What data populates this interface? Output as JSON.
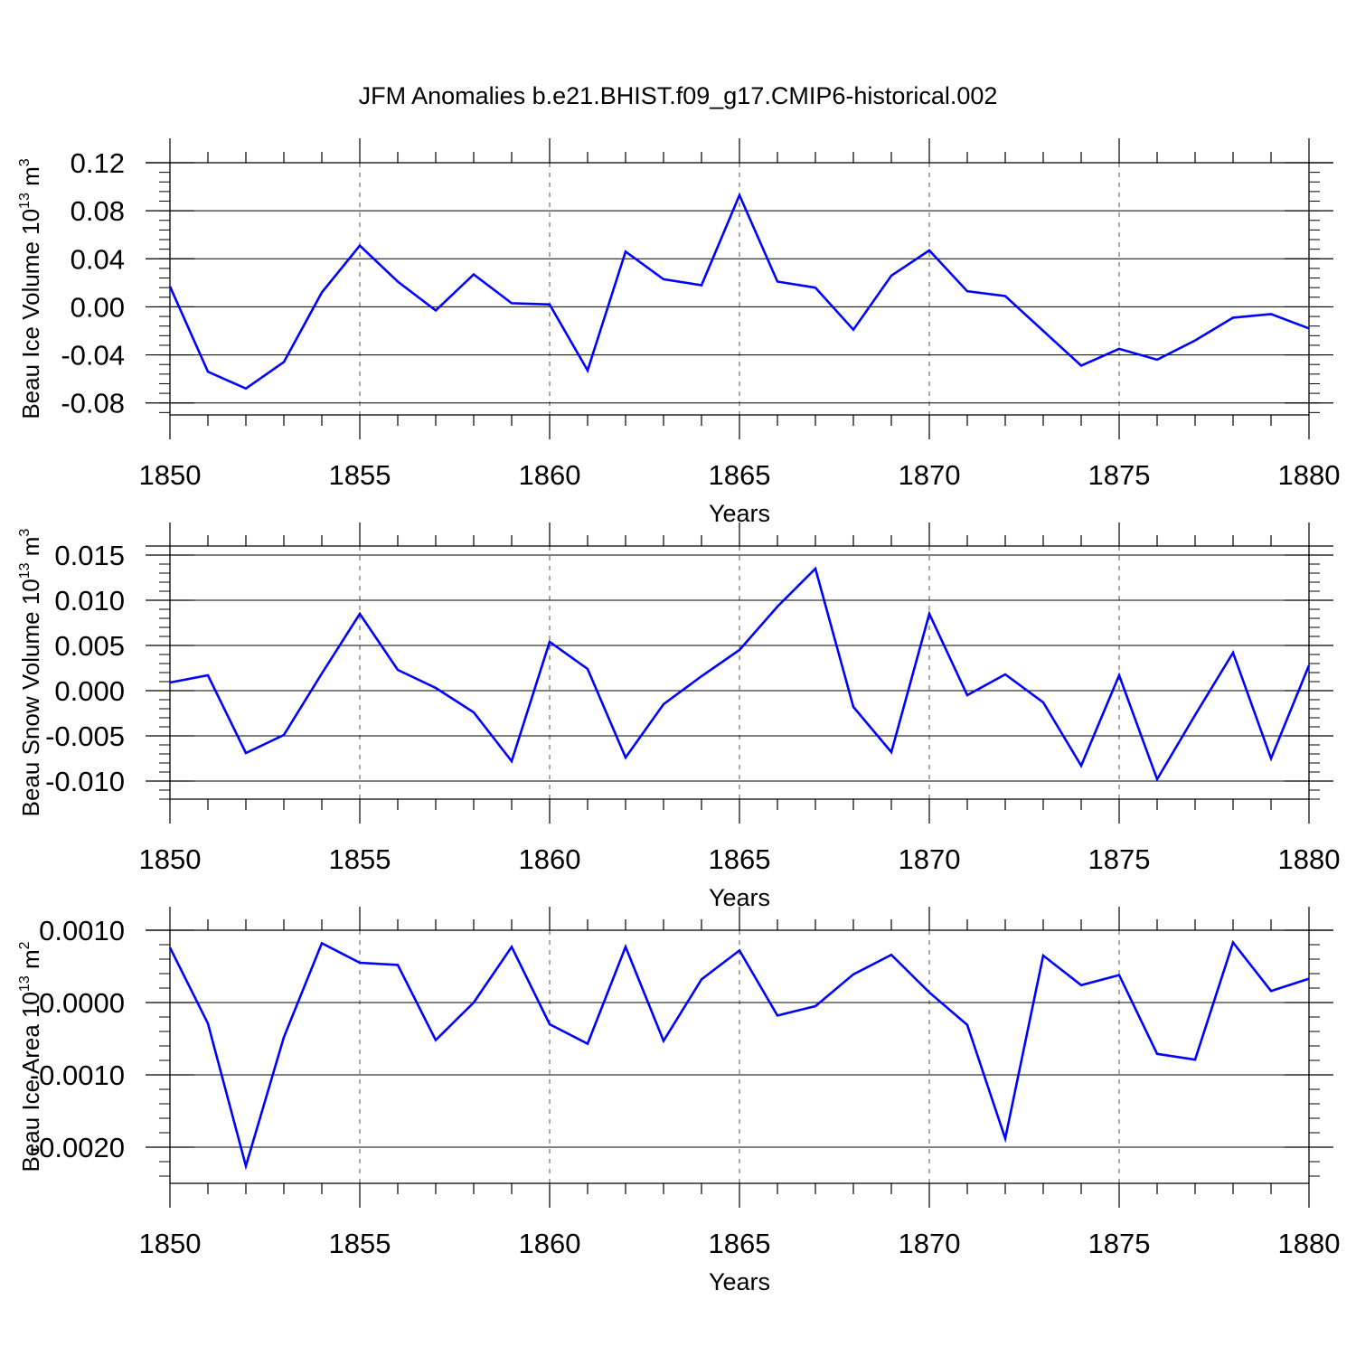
{
  "figure_title": "JFM Anomalies b.e21.BHIST.f09_g17.CMIP6-historical.002",
  "colors": {
    "line": "#0000ff",
    "axis": "#000000",
    "grid": "#000000"
  },
  "chart_data": [
    {
      "type": "line",
      "xlabel": "Years",
      "ylabel": {
        "text": "Beau Ice Volume 10",
        "sup": "13",
        "unit": " m",
        "unit_sup": "3"
      },
      "xlim": [
        1850,
        1880
      ],
      "ylim": [
        -0.09,
        0.12
      ],
      "xticks": [
        1850,
        1855,
        1860,
        1865,
        1870,
        1875,
        1880
      ],
      "xtick_labels": [
        "1850",
        "1855",
        "1860",
        "1865",
        "1870",
        "1875",
        "1880"
      ],
      "yticks": [
        -0.08,
        -0.04,
        0.0,
        0.04,
        0.08,
        0.12
      ],
      "ytick_labels": [
        "-0.08",
        "-0.04",
        "0.00",
        "0.04",
        "0.08",
        "0.12"
      ],
      "yminor_step": 0.008,
      "grid": "vertical dashed at major x ticks",
      "series": [
        {
          "x": [
            1850,
            1851,
            1852,
            1853,
            1854,
            1855,
            1856,
            1857,
            1858,
            1859,
            1860,
            1861,
            1862,
            1863,
            1864,
            1865,
            1866,
            1867,
            1868,
            1869,
            1870,
            1871,
            1872,
            1873,
            1874,
            1875,
            1876,
            1877,
            1878,
            1879,
            1880
          ],
          "values": [
            0.017,
            -0.054,
            -0.068,
            -0.046,
            0.012,
            0.051,
            0.021,
            -0.003,
            0.027,
            0.003,
            0.002,
            -0.053,
            0.046,
            0.023,
            0.018,
            0.093,
            0.021,
            0.016,
            -0.019,
            0.026,
            0.047,
            0.013,
            0.009,
            -0.02,
            -0.049,
            -0.035,
            -0.044,
            -0.028,
            -0.009,
            -0.006,
            -0.018
          ]
        }
      ]
    },
    {
      "type": "line",
      "xlabel": "Years",
      "ylabel": {
        "text": "Beau Snow Volume 10",
        "sup": "13",
        "unit": " m",
        "unit_sup": "3"
      },
      "xlim": [
        1850,
        1880
      ],
      "ylim": [
        -0.012,
        0.016
      ],
      "xticks": [
        1850,
        1855,
        1860,
        1865,
        1870,
        1875,
        1880
      ],
      "xtick_labels": [
        "1850",
        "1855",
        "1860",
        "1865",
        "1870",
        "1875",
        "1880"
      ],
      "yticks": [
        -0.01,
        -0.005,
        0.0,
        0.005,
        0.01,
        0.015
      ],
      "ytick_labels": [
        "-0.010",
        "-0.005",
        "0.000",
        "0.005",
        "0.010",
        "0.015"
      ],
      "yminor_step": 0.001,
      "grid": "vertical dashed at major x ticks",
      "series": [
        {
          "x": [
            1850,
            1851,
            1852,
            1853,
            1854,
            1855,
            1856,
            1857,
            1858,
            1859,
            1860,
            1861,
            1862,
            1863,
            1864,
            1865,
            1866,
            1867,
            1868,
            1869,
            1870,
            1871,
            1872,
            1873,
            1874,
            1875,
            1876,
            1877,
            1878,
            1879,
            1880
          ],
          "values": [
            0.0009,
            0.0017,
            -0.0069,
            -0.0049,
            0.0019,
            0.0085,
            0.0023,
            0.0003,
            -0.0024,
            -0.0078,
            0.0054,
            0.0024,
            -0.0074,
            -0.0015,
            0.0016,
            0.0045,
            0.0093,
            0.0135,
            -0.0018,
            -0.0068,
            0.0085,
            -0.0005,
            0.0018,
            -0.0013,
            -0.0083,
            0.0017,
            -0.0098,
            -0.0027,
            0.0042,
            -0.0075,
            0.0028
          ]
        }
      ]
    },
    {
      "type": "line",
      "xlabel": "Years",
      "ylabel": {
        "text": "Beau Ice Area 10",
        "sup": "13",
        "unit": " m",
        "unit_sup": "2"
      },
      "xlim": [
        1850,
        1880
      ],
      "ylim": [
        -0.0025,
        0.001
      ],
      "xticks": [
        1850,
        1855,
        1860,
        1865,
        1870,
        1875,
        1880
      ],
      "xtick_labels": [
        "1850",
        "1855",
        "1860",
        "1865",
        "1870",
        "1875",
        "1880"
      ],
      "yticks": [
        -0.002,
        -0.001,
        0.0,
        0.001
      ],
      "ytick_labels": [
        "-0.0020",
        "-0.0010",
        "0.0000",
        "0.0010"
      ],
      "yminor_step": 0.0002,
      "grid": "vertical dashed at major x ticks",
      "series": [
        {
          "x": [
            1850,
            1851,
            1852,
            1853,
            1854,
            1855,
            1856,
            1857,
            1858,
            1859,
            1860,
            1861,
            1862,
            1863,
            1864,
            1865,
            1866,
            1867,
            1868,
            1869,
            1870,
            1871,
            1872,
            1873,
            1874,
            1875,
            1876,
            1877,
            1878,
            1879,
            1880
          ],
          "values": [
            0.00076,
            -0.00029,
            -0.00226,
            -0.00048,
            0.00082,
            0.00055,
            0.00052,
            -0.00052,
            0.0,
            0.00077,
            -0.0003,
            -0.00057,
            0.00077,
            -0.00053,
            0.00032,
            0.00072,
            -0.00018,
            -5e-05,
            0.00039,
            0.00066,
            0.00014,
            -0.00031,
            -0.00188,
            0.00065,
            0.00024,
            0.00038,
            -0.00071,
            -0.00079,
            0.00083,
            0.00016,
            0.00033
          ]
        }
      ]
    }
  ]
}
